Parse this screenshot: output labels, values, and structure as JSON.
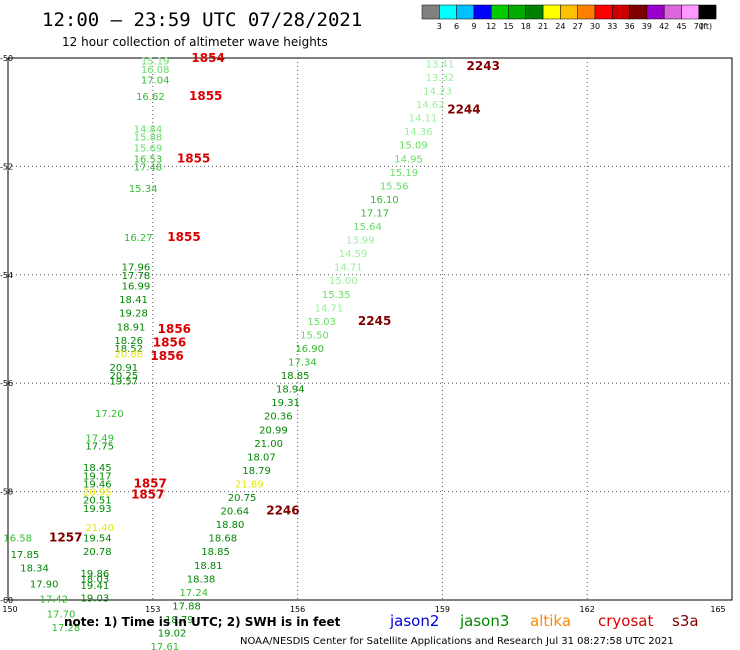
{
  "header": {
    "title": "12:00 – 23:59 UTC 07/28/2021",
    "subtitle": "12 hour collection of altimeter wave heights"
  },
  "colorbar": {
    "ticks": [
      "3",
      "6",
      "9",
      "12",
      "15",
      "18",
      "21",
      "24",
      "27",
      "30",
      "33",
      "36",
      "39",
      "42",
      "45",
      "70"
    ],
    "unit": "(ft)",
    "colors": [
      "#808080",
      "#00ffff",
      "#00bfff",
      "#0000ff",
      "#00cc00",
      "#00aa00",
      "#008000",
      "#ffff00",
      "#ffc000",
      "#ff8000",
      "#ff0000",
      "#cc0000",
      "#800000",
      "#9900cc",
      "#dd66dd",
      "#ff99ff",
      "#000000"
    ]
  },
  "footer": {
    "note": "note:  1) Time is in UTC;  2) SWH is in feet",
    "satellites": [
      {
        "name": "jason2",
        "color": "#0000dd"
      },
      {
        "name": "jason3",
        "color": "#008800"
      },
      {
        "name": "altika",
        "color": "#ff8800"
      },
      {
        "name": "cryosat",
        "color": "#dd0000"
      },
      {
        "name": "s3a",
        "color": "#800000"
      }
    ],
    "credit": "NOAA/NESDIS Center for Satellite Applications and Research    Jul 31 08:27:58 UTC 2021"
  },
  "chart_data": {
    "type": "scatter",
    "x_ticks": [
      "150",
      "153",
      "156",
      "159",
      "162",
      "165"
    ],
    "y_ticks": [
      "-50",
      "-52",
      "-54",
      "-56",
      "-58",
      "-60"
    ],
    "xlim": [
      150,
      165
    ],
    "ylim": [
      -60,
      -50
    ],
    "grid": true,
    "y_tick_values": [
      -50,
      -52,
      -54,
      -56,
      -58,
      -60
    ],
    "x_tick_values": [
      150,
      153,
      156,
      159,
      162,
      165
    ],
    "points": [
      {
        "lon": 153.05,
        "lat": -50.05,
        "swh": "15.19",
        "color": "#66dd66"
      },
      {
        "lon": 153.05,
        "lat": -50.2,
        "swh": "16.08",
        "color": "#66dd66"
      },
      {
        "lon": 153.05,
        "lat": -50.4,
        "swh": "17.04",
        "color": "#33bb33"
      },
      {
        "lon": 152.95,
        "lat": -50.7,
        "swh": "16.62",
        "color": "#33bb33"
      },
      {
        "lon": 152.9,
        "lat": -51.3,
        "swh": "14.84",
        "color": "#66dd66"
      },
      {
        "lon": 152.9,
        "lat": -51.45,
        "swh": "15.88",
        "color": "#66dd66"
      },
      {
        "lon": 152.9,
        "lat": -51.65,
        "swh": "15.69",
        "color": "#66dd66"
      },
      {
        "lon": 152.9,
        "lat": -51.85,
        "swh": "16.53",
        "color": "#33bb33"
      },
      {
        "lon": 152.9,
        "lat": -52.0,
        "swh": "17.48",
        "color": "#33bb33"
      },
      {
        "lon": 152.8,
        "lat": -52.4,
        "swh": "15.34",
        "color": "#33bb33"
      },
      {
        "lon": 152.7,
        "lat": -53.3,
        "swh": "16.27",
        "color": "#33bb33"
      },
      {
        "lon": 152.65,
        "lat": -53.85,
        "swh": "17.96",
        "color": "#008800"
      },
      {
        "lon": 152.65,
        "lat": -54.0,
        "swh": "17.78",
        "color": "#008800"
      },
      {
        "lon": 152.65,
        "lat": -54.2,
        "swh": "16.99",
        "color": "#008800"
      },
      {
        "lon": 152.6,
        "lat": -54.45,
        "swh": "18.41",
        "color": "#008800"
      },
      {
        "lon": 152.6,
        "lat": -54.7,
        "swh": "19.28",
        "color": "#008800"
      },
      {
        "lon": 152.55,
        "lat": -54.95,
        "swh": "18.91",
        "color": "#008800"
      },
      {
        "lon": 152.5,
        "lat": -55.2,
        "swh": "18.26",
        "color": "#008800"
      },
      {
        "lon": 152.5,
        "lat": -55.35,
        "swh": "18.52",
        "color": "#008800"
      },
      {
        "lon": 152.5,
        "lat": -55.45,
        "swh": "20.88",
        "color": "#e6e600"
      },
      {
        "lon": 152.4,
        "lat": -55.7,
        "swh": "20.91",
        "color": "#008800"
      },
      {
        "lon": 152.4,
        "lat": -55.85,
        "swh": "20.25",
        "color": "#008800"
      },
      {
        "lon": 152.4,
        "lat": -55.95,
        "swh": "19.57",
        "color": "#008800"
      },
      {
        "lon": 152.1,
        "lat": -56.55,
        "swh": "17.20",
        "color": "#33bb33"
      },
      {
        "lon": 151.9,
        "lat": -57.0,
        "swh": "17.49",
        "color": "#33bb33"
      },
      {
        "lon": 151.9,
        "lat": -57.15,
        "swh": "17.75",
        "color": "#008800"
      },
      {
        "lon": 151.85,
        "lat": -57.55,
        "swh": "18.45",
        "color": "#008800"
      },
      {
        "lon": 151.85,
        "lat": -57.7,
        "swh": "19.17",
        "color": "#008800"
      },
      {
        "lon": 151.85,
        "lat": -57.85,
        "swh": "19.46",
        "color": "#008800"
      },
      {
        "lon": 151.85,
        "lat": -58.0,
        "swh": "20.95",
        "color": "#e6e600"
      },
      {
        "lon": 151.85,
        "lat": -58.15,
        "swh": "20.51",
        "color": "#008800"
      },
      {
        "lon": 151.85,
        "lat": -58.3,
        "swh": "19.93",
        "color": "#008800"
      },
      {
        "lon": 151.9,
        "lat": -58.65,
        "swh": "21.40",
        "color": "#e6e600"
      },
      {
        "lon": 151.85,
        "lat": -58.85,
        "swh": "19.54",
        "color": "#008800"
      },
      {
        "lon": 151.85,
        "lat": -59.1,
        "swh": "20.78",
        "color": "#008800"
      },
      {
        "lon": 151.8,
        "lat": -59.5,
        "swh": "19.86",
        "color": "#008800"
      },
      {
        "lon": 151.8,
        "lat": -59.6,
        "swh": "18.03",
        "color": "#008800"
      },
      {
        "lon": 151.8,
        "lat": -59.72,
        "swh": "19.41",
        "color": "#008800"
      },
      {
        "lon": 151.8,
        "lat": -59.95,
        "swh": "19.03",
        "color": "#008800"
      },
      {
        "lon": 150.2,
        "lat": -58.85,
        "swh": "16.58",
        "color": "#33bb33"
      },
      {
        "lon": 150.35,
        "lat": -59.15,
        "swh": "17.85",
        "color": "#008800"
      },
      {
        "lon": 150.55,
        "lat": -59.4,
        "swh": "18.34",
        "color": "#008800"
      },
      {
        "lon": 150.75,
        "lat": -59.7,
        "swh": "17.90",
        "color": "#008800"
      },
      {
        "lon": 150.95,
        "lat": -59.97,
        "swh": "17.42",
        "color": "#33bb33"
      },
      {
        "lon": 151.1,
        "lat": -60.25,
        "swh": "17.70",
        "color": "#33bb33"
      },
      {
        "lon": 151.2,
        "lat": -60.5,
        "swh": "17.28",
        "color": "#33bb33"
      },
      {
        "lon": 158.95,
        "lat": -50.1,
        "swh": "13.41",
        "color": "#99ee99"
      },
      {
        "lon": 158.95,
        "lat": -50.35,
        "swh": "13.32",
        "color": "#99ee99"
      },
      {
        "lon": 158.9,
        "lat": -50.6,
        "swh": "14.23",
        "color": "#99ee99"
      },
      {
        "lon": 158.75,
        "lat": -50.85,
        "swh": "14.62",
        "color": "#99ee99"
      },
      {
        "lon": 158.6,
        "lat": -51.1,
        "swh": "14.11",
        "color": "#99ee99"
      },
      {
        "lon": 158.5,
        "lat": -51.35,
        "swh": "14.36",
        "color": "#99ee99"
      },
      {
        "lon": 158.4,
        "lat": -51.6,
        "swh": "15.09",
        "color": "#66dd66"
      },
      {
        "lon": 158.3,
        "lat": -51.85,
        "swh": "14.95",
        "color": "#66dd66"
      },
      {
        "lon": 158.2,
        "lat": -52.1,
        "swh": "15.19",
        "color": "#66dd66"
      },
      {
        "lon": 158.0,
        "lat": -52.35,
        "swh": "15.56",
        "color": "#66dd66"
      },
      {
        "lon": 157.8,
        "lat": -52.6,
        "swh": "16.10",
        "color": "#33bb33"
      },
      {
        "lon": 157.6,
        "lat": -52.85,
        "swh": "17.17",
        "color": "#33bb33"
      },
      {
        "lon": 157.45,
        "lat": -53.1,
        "swh": "15.64",
        "color": "#66dd66"
      },
      {
        "lon": 157.3,
        "lat": -53.35,
        "swh": "13.99",
        "color": "#99ee99"
      },
      {
        "lon": 157.15,
        "lat": -53.6,
        "swh": "14.59",
        "color": "#99ee99"
      },
      {
        "lon": 157.05,
        "lat": -53.85,
        "swh": "14.71",
        "color": "#99ee99"
      },
      {
        "lon": 156.95,
        "lat": -54.1,
        "swh": "15.00",
        "color": "#99ee99"
      },
      {
        "lon": 156.8,
        "lat": -54.35,
        "swh": "15.35",
        "color": "#66dd66"
      },
      {
        "lon": 156.65,
        "lat": -54.6,
        "swh": "14.71",
        "color": "#99ee99"
      },
      {
        "lon": 156.5,
        "lat": -54.85,
        "swh": "15.03",
        "color": "#66dd66"
      },
      {
        "lon": 156.35,
        "lat": -55.1,
        "swh": "15.50",
        "color": "#66dd66"
      },
      {
        "lon": 156.25,
        "lat": -55.35,
        "swh": "16.90",
        "color": "#33bb33"
      },
      {
        "lon": 156.1,
        "lat": -55.6,
        "swh": "17.34",
        "color": "#33bb33"
      },
      {
        "lon": 155.95,
        "lat": -55.85,
        "swh": "18.85",
        "color": "#008800"
      },
      {
        "lon": 155.85,
        "lat": -56.1,
        "swh": "18.94",
        "color": "#008800"
      },
      {
        "lon": 155.75,
        "lat": -56.35,
        "swh": "19.31",
        "color": "#008800"
      },
      {
        "lon": 155.6,
        "lat": -56.6,
        "swh": "20.36",
        "color": "#008800"
      },
      {
        "lon": 155.5,
        "lat": -56.85,
        "swh": "20.99",
        "color": "#008800"
      },
      {
        "lon": 155.4,
        "lat": -57.1,
        "swh": "21.00",
        "color": "#008800"
      },
      {
        "lon": 155.25,
        "lat": -57.35,
        "swh": "18.07",
        "color": "#008800"
      },
      {
        "lon": 155.15,
        "lat": -57.6,
        "swh": "18.79",
        "color": "#008800"
      },
      {
        "lon": 155.0,
        "lat": -57.85,
        "swh": "21.89",
        "color": "#e6e600"
      },
      {
        "lon": 154.85,
        "lat": -58.1,
        "swh": "20.75",
        "color": "#008800"
      },
      {
        "lon": 154.7,
        "lat": -58.35,
        "swh": "20.64",
        "color": "#008800"
      },
      {
        "lon": 154.6,
        "lat": -58.6,
        "swh": "18.80",
        "color": "#008800"
      },
      {
        "lon": 154.45,
        "lat": -58.85,
        "swh": "18.68",
        "color": "#008800"
      },
      {
        "lon": 154.3,
        "lat": -59.1,
        "swh": "18.85",
        "color": "#008800"
      },
      {
        "lon": 154.15,
        "lat": -59.35,
        "swh": "18.81",
        "color": "#008800"
      },
      {
        "lon": 154.0,
        "lat": -59.6,
        "swh": "18.38",
        "color": "#008800"
      },
      {
        "lon": 153.85,
        "lat": -59.85,
        "swh": "17.24",
        "color": "#33bb33"
      },
      {
        "lon": 153.7,
        "lat": -60.1,
        "swh": "17.88",
        "color": "#008800"
      },
      {
        "lon": 153.55,
        "lat": -60.35,
        "swh": "18.79",
        "color": "#008800"
      },
      {
        "lon": 153.4,
        "lat": -60.6,
        "swh": "19.02",
        "color": "#008800"
      },
      {
        "lon": 153.25,
        "lat": -60.85,
        "swh": "17.61",
        "color": "#33bb33"
      }
    ],
    "time_labels": [
      {
        "lon": 153.8,
        "lat": -50.0,
        "text": "1854",
        "color": "#dd0000"
      },
      {
        "lon": 153.75,
        "lat": -50.7,
        "text": "1855",
        "color": "#dd0000"
      },
      {
        "lon": 153.5,
        "lat": -51.85,
        "text": "1855",
        "color": "#dd0000"
      },
      {
        "lon": 153.3,
        "lat": -53.3,
        "text": "1855",
        "color": "#dd0000"
      },
      {
        "lon": 153.1,
        "lat": -55.0,
        "text": "1856",
        "color": "#dd0000"
      },
      {
        "lon": 153.0,
        "lat": -55.25,
        "text": "1856",
        "color": "#dd0000"
      },
      {
        "lon": 152.95,
        "lat": -55.5,
        "text": "1856",
        "color": "#dd0000"
      },
      {
        "lon": 152.6,
        "lat": -57.85,
        "text": "1857",
        "color": "#dd0000"
      },
      {
        "lon": 152.55,
        "lat": -58.05,
        "text": "1857",
        "color": "#dd0000"
      },
      {
        "lon": 150.85,
        "lat": -58.85,
        "text": "1257",
        "color": "#800000"
      },
      {
        "lon": 159.5,
        "lat": -50.15,
        "text": "2243",
        "color": "#800000"
      },
      {
        "lon": 159.1,
        "lat": -50.95,
        "text": "2244",
        "color": "#800000"
      },
      {
        "lon": 157.25,
        "lat": -54.85,
        "text": "2245",
        "color": "#800000"
      },
      {
        "lon": 155.35,
        "lat": -58.35,
        "text": "2246",
        "color": "#800000"
      }
    ]
  }
}
